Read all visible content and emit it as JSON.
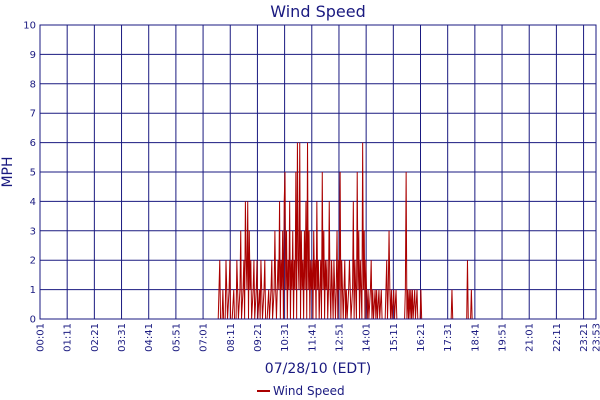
{
  "chart_data": {
    "type": "line",
    "title": "Wind Speed",
    "xlabel": "07/28/10 (EDT)",
    "ylabel": "MPH",
    "ylim": [
      0,
      10
    ],
    "y_ticks": [
      "0",
      "1",
      "2",
      "3",
      "4",
      "5",
      "6",
      "7",
      "8",
      "9",
      "10"
    ],
    "x_ticks": [
      "00:01",
      "01:11",
      "02:21",
      "03:31",
      "04:41",
      "05:51",
      "07:01",
      "08:11",
      "09:21",
      "10:31",
      "11:41",
      "12:51",
      "14:01",
      "15:11",
      "16:21",
      "17:31",
      "18:41",
      "19:51",
      "21:01",
      "22:11",
      "23:21",
      "23:53"
    ],
    "xlim_minutes": [
      1,
      1433
    ],
    "grid": true,
    "legend_position": "bottom-center",
    "series": [
      {
        "name": "Wind Speed",
        "color": "#aa0000",
        "points": [
          [
            1,
            0
          ],
          [
            460,
            0
          ],
          [
            462,
            1
          ],
          [
            464,
            2
          ],
          [
            466,
            0
          ],
          [
            470,
            0
          ],
          [
            472,
            1
          ],
          [
            474,
            0
          ],
          [
            478,
            0
          ],
          [
            480,
            2
          ],
          [
            482,
            1
          ],
          [
            484,
            0
          ],
          [
            488,
            1
          ],
          [
            490,
            2
          ],
          [
            492,
            0
          ],
          [
            496,
            0
          ],
          [
            500,
            1
          ],
          [
            502,
            0
          ],
          [
            506,
            0
          ],
          [
            508,
            2
          ],
          [
            510,
            1
          ],
          [
            512,
            0
          ],
          [
            516,
            1
          ],
          [
            518,
            3
          ],
          [
            520,
            0
          ],
          [
            524,
            1
          ],
          [
            526,
            2
          ],
          [
            528,
            0
          ],
          [
            530,
            4
          ],
          [
            532,
            2
          ],
          [
            534,
            1
          ],
          [
            536,
            4
          ],
          [
            538,
            0
          ],
          [
            540,
            3
          ],
          [
            542,
            1
          ],
          [
            544,
            2
          ],
          [
            546,
            0
          ],
          [
            550,
            1
          ],
          [
            552,
            2
          ],
          [
            554,
            0
          ],
          [
            558,
            1
          ],
          [
            560,
            2
          ],
          [
            562,
            0
          ],
          [
            566,
            1
          ],
          [
            568,
            0
          ],
          [
            570,
            2
          ],
          [
            572,
            1
          ],
          [
            574,
            0
          ],
          [
            578,
            1
          ],
          [
            580,
            2
          ],
          [
            582,
            0
          ],
          [
            586,
            0
          ],
          [
            590,
            1
          ],
          [
            592,
            0
          ],
          [
            596,
            1
          ],
          [
            598,
            2
          ],
          [
            600,
            0
          ],
          [
            604,
            1
          ],
          [
            606,
            3
          ],
          [
            608,
            1
          ],
          [
            610,
            0
          ],
          [
            614,
            2
          ],
          [
            616,
            1
          ],
          [
            618,
            4
          ],
          [
            620,
            0
          ],
          [
            622,
            2
          ],
          [
            624,
            1
          ],
          [
            626,
            3
          ],
          [
            628,
            0
          ],
          [
            630,
            4
          ],
          [
            632,
            5
          ],
          [
            634,
            1
          ],
          [
            636,
            3
          ],
          [
            638,
            0
          ],
          [
            640,
            2
          ],
          [
            642,
            1
          ],
          [
            644,
            4
          ],
          [
            646,
            0
          ],
          [
            648,
            2
          ],
          [
            650,
            1
          ],
          [
            652,
            3
          ],
          [
            654,
            0
          ],
          [
            656,
            2
          ],
          [
            658,
            1
          ],
          [
            660,
            5
          ],
          [
            662,
            0
          ],
          [
            664,
            6
          ],
          [
            666,
            2
          ],
          [
            668,
            1
          ],
          [
            670,
            6
          ],
          [
            672,
            0
          ],
          [
            674,
            3
          ],
          [
            676,
            1
          ],
          [
            678,
            2
          ],
          [
            680,
            0
          ],
          [
            682,
            3
          ],
          [
            684,
            1
          ],
          [
            686,
            4
          ],
          [
            688,
            0
          ],
          [
            690,
            6
          ],
          [
            692,
            1
          ],
          [
            694,
            3
          ],
          [
            696,
            0
          ],
          [
            698,
            2
          ],
          [
            700,
            1
          ],
          [
            702,
            2
          ],
          [
            704,
            0
          ],
          [
            706,
            3
          ],
          [
            708,
            1
          ],
          [
            710,
            2
          ],
          [
            712,
            0
          ],
          [
            714,
            4
          ],
          [
            716,
            1
          ],
          [
            718,
            2
          ],
          [
            720,
            0
          ],
          [
            722,
            1
          ],
          [
            724,
            2
          ],
          [
            726,
            0
          ],
          [
            728,
            5
          ],
          [
            730,
            1
          ],
          [
            732,
            3
          ],
          [
            734,
            0
          ],
          [
            736,
            2
          ],
          [
            738,
            1
          ],
          [
            740,
            2
          ],
          [
            742,
            0
          ],
          [
            744,
            1
          ],
          [
            746,
            4
          ],
          [
            748,
            1
          ],
          [
            750,
            0
          ],
          [
            752,
            2
          ],
          [
            754,
            1
          ],
          [
            756,
            0
          ],
          [
            758,
            2
          ],
          [
            760,
            1
          ],
          [
            762,
            0
          ],
          [
            764,
            1
          ],
          [
            766,
            3
          ],
          [
            768,
            0
          ],
          [
            770,
            2
          ],
          [
            772,
            1
          ],
          [
            774,
            5
          ],
          [
            776,
            0
          ],
          [
            778,
            2
          ],
          [
            780,
            1
          ],
          [
            782,
            0
          ],
          [
            784,
            1
          ],
          [
            786,
            2
          ],
          [
            788,
            0
          ],
          [
            790,
            1
          ],
          [
            792,
            0
          ],
          [
            796,
            1
          ],
          [
            798,
            2
          ],
          [
            800,
            1
          ],
          [
            802,
            0
          ],
          [
            806,
            1
          ],
          [
            808,
            4
          ],
          [
            810,
            0
          ],
          [
            812,
            2
          ],
          [
            814,
            1
          ],
          [
            816,
            0
          ],
          [
            818,
            5
          ],
          [
            820,
            1
          ],
          [
            822,
            3
          ],
          [
            824,
            0
          ],
          [
            826,
            2
          ],
          [
            828,
            1
          ],
          [
            830,
            0
          ],
          [
            832,
            6
          ],
          [
            834,
            1
          ],
          [
            836,
            3
          ],
          [
            838,
            0
          ],
          [
            840,
            2
          ],
          [
            842,
            1
          ],
          [
            844,
            0
          ],
          [
            846,
            1
          ],
          [
            848,
            0
          ],
          [
            852,
            1
          ],
          [
            854,
            2
          ],
          [
            856,
            0
          ],
          [
            858,
            1
          ],
          [
            860,
            0
          ],
          [
            864,
            1
          ],
          [
            866,
            0
          ],
          [
            868,
            1
          ],
          [
            870,
            0
          ],
          [
            874,
            1
          ],
          [
            876,
            0
          ],
          [
            880,
            1
          ],
          [
            882,
            0
          ],
          [
            890,
            0
          ],
          [
            892,
            1
          ],
          [
            894,
            2
          ],
          [
            896,
            0
          ],
          [
            898,
            1
          ],
          [
            900,
            3
          ],
          [
            902,
            1
          ],
          [
            904,
            0
          ],
          [
            906,
            1
          ],
          [
            908,
            0
          ],
          [
            912,
            1
          ],
          [
            914,
            0
          ],
          [
            918,
            1
          ],
          [
            920,
            0
          ],
          [
            940,
            0
          ],
          [
            942,
            1
          ],
          [
            944,
            5
          ],
          [
            946,
            0
          ],
          [
            948,
            1
          ],
          [
            950,
            0
          ],
          [
            952,
            1
          ],
          [
            954,
            0
          ],
          [
            956,
            1
          ],
          [
            958,
            0
          ],
          [
            960,
            1
          ],
          [
            962,
            0
          ],
          [
            966,
            1
          ],
          [
            968,
            0
          ],
          [
            972,
            1
          ],
          [
            974,
            0
          ],
          [
            980,
            0
          ],
          [
            982,
            1
          ],
          [
            984,
            0
          ],
          [
            1060,
            0
          ],
          [
            1062,
            1
          ],
          [
            1064,
            0
          ],
          [
            1100,
            0
          ],
          [
            1102,
            2
          ],
          [
            1104,
            0
          ],
          [
            1110,
            0
          ],
          [
            1112,
            1
          ],
          [
            1114,
            0
          ],
          [
            1433,
            0
          ]
        ]
      }
    ]
  }
}
